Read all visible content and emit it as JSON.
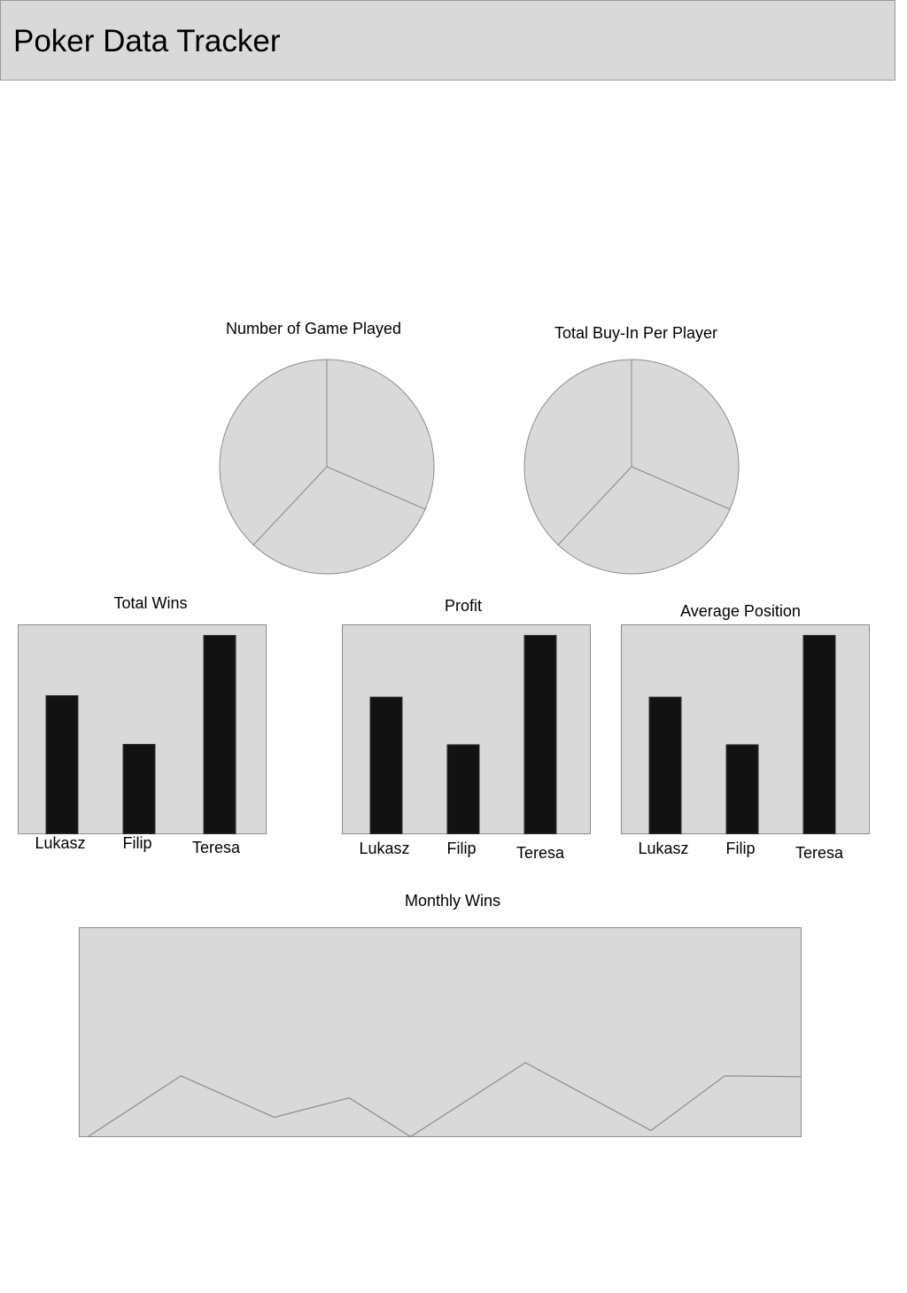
{
  "header": {
    "title": "Poker Data Tracker"
  },
  "colors": {
    "header_bg": "#d9d9d9",
    "plot_bg": "#d9d9d9",
    "bar_fill": "#121212",
    "outline": "#8c8c8c"
  },
  "chart_data": [
    {
      "id": "games-played",
      "type": "pie",
      "title": "Number of Game Played",
      "slices": [
        {
          "value": 31.5
        },
        {
          "value": 30.5
        },
        {
          "value": 38.0
        }
      ]
    },
    {
      "id": "buy-in",
      "type": "pie",
      "title": "Total Buy-In Per Player",
      "slices": [
        {
          "value": 31.5
        },
        {
          "value": 30.5
        },
        {
          "value": 38.0
        }
      ]
    },
    {
      "id": "total-wins",
      "type": "bar",
      "title": "Total Wins",
      "categories": [
        "Lukasz",
        "Filip",
        "Teresa"
      ],
      "values": [
        156,
        101,
        224
      ],
      "ylim": [
        0,
        236
      ],
      "grid": false,
      "legend": "none"
    },
    {
      "id": "profit",
      "type": "bar",
      "title": "Profit",
      "categories": [
        "Lukasz",
        "Filip",
        "Teresa"
      ],
      "values": [
        155,
        101,
        225
      ],
      "ylim": [
        0,
        237
      ],
      "grid": false,
      "legend": "none"
    },
    {
      "id": "average-position",
      "type": "bar",
      "title": "Average Position",
      "categories": [
        "Lukasz",
        "Filip",
        "Teresa"
      ],
      "values": [
        155,
        101,
        225
      ],
      "ylim": [
        0,
        237
      ],
      "grid": false,
      "legend": "none"
    },
    {
      "id": "monthly-wins",
      "type": "line",
      "title": "Monthly Wins",
      "x": [
        0.012,
        0.141,
        0.27,
        0.374,
        0.459,
        0.618,
        0.792,
        0.894,
        1.0
      ],
      "y": [
        0,
        69,
        22,
        44,
        0,
        84,
        7,
        69,
        68
      ],
      "xlim": [
        0,
        1
      ],
      "ylim": [
        0,
        237
      ],
      "grid": false,
      "legend": "none"
    }
  ]
}
